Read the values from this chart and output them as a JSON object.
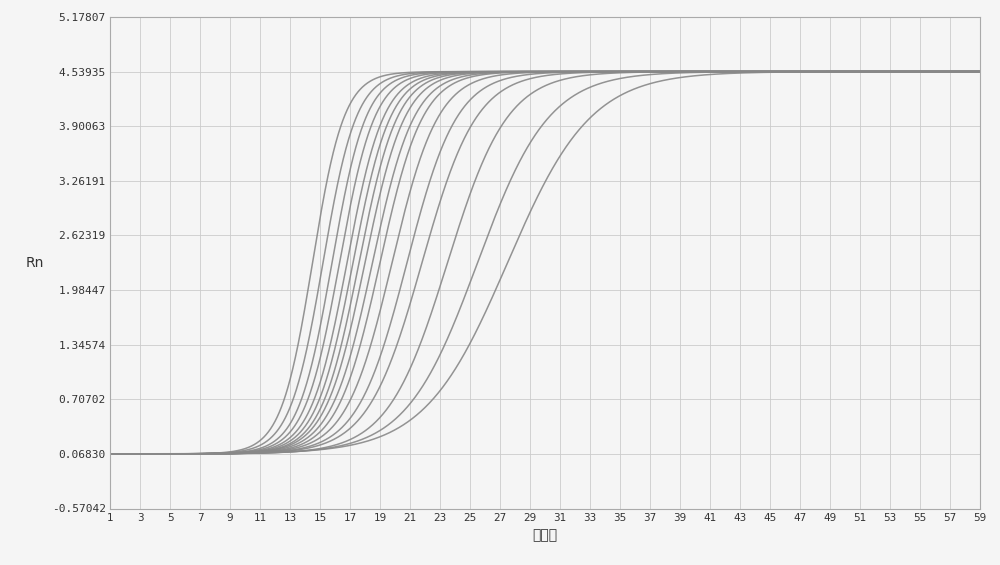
{
  "ylabel": "Rn",
  "xlabel": "循环数",
  "ylim": [
    -0.57042,
    5.17807
  ],
  "xlim": [
    1,
    59
  ],
  "yticks": [
    -0.57042,
    0.0683,
    0.70702,
    1.34574,
    1.98447,
    2.62319,
    3.26191,
    3.90063,
    4.53935,
    5.17807
  ],
  "xticks": [
    1,
    3,
    5,
    7,
    9,
    11,
    13,
    15,
    17,
    19,
    21,
    23,
    25,
    27,
    29,
    31,
    33,
    35,
    37,
    39,
    41,
    43,
    45,
    47,
    49,
    51,
    53,
    55,
    57,
    59
  ],
  "background_color": "#f5f5f5",
  "grid_color": "#cccccc",
  "line_color": "#888888",
  "line_width": 1.1,
  "num_curves": 16,
  "midpoints": [
    14.5,
    15.2,
    15.8,
    16.3,
    16.8,
    17.2,
    17.6,
    18.0,
    18.5,
    19.0,
    19.8,
    20.8,
    21.8,
    23.5,
    25.5,
    27.5
  ],
  "baseline": 0.0683,
  "plateau": 4.53935,
  "steepness": [
    0.95,
    0.9,
    0.88,
    0.85,
    0.82,
    0.8,
    0.78,
    0.75,
    0.72,
    0.7,
    0.65,
    0.6,
    0.55,
    0.5,
    0.42,
    0.36
  ]
}
